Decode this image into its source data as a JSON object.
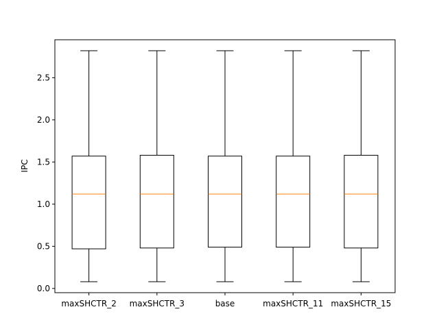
{
  "chart_data": {
    "type": "box",
    "title": "",
    "xlabel": "",
    "ylabel": "IPC",
    "ylim": [
      -0.05,
      2.95
    ],
    "yticks": [
      0.0,
      0.5,
      1.0,
      1.5,
      2.0,
      2.5
    ],
    "ytick_labels": [
      "0.0",
      "0.5",
      "1.0",
      "1.5",
      "2.0",
      "2.5"
    ],
    "grid": false,
    "colors": {
      "box": "#000000",
      "median": "#ff7f0e"
    },
    "categories": [
      "maxSHCTR_2",
      "maxSHCTR_3",
      "base",
      "maxSHCTR_11",
      "maxSHCTR_15"
    ],
    "boxes": [
      {
        "whisker_low": 0.08,
        "q1": 0.47,
        "median": 1.12,
        "q3": 1.57,
        "whisker_high": 2.82
      },
      {
        "whisker_low": 0.08,
        "q1": 0.48,
        "median": 1.12,
        "q3": 1.58,
        "whisker_high": 2.82
      },
      {
        "whisker_low": 0.08,
        "q1": 0.49,
        "median": 1.12,
        "q3": 1.57,
        "whisker_high": 2.82
      },
      {
        "whisker_low": 0.08,
        "q1": 0.49,
        "median": 1.12,
        "q3": 1.57,
        "whisker_high": 2.82
      },
      {
        "whisker_low": 0.08,
        "q1": 0.48,
        "median": 1.12,
        "q3": 1.58,
        "whisker_high": 2.82
      }
    ]
  }
}
